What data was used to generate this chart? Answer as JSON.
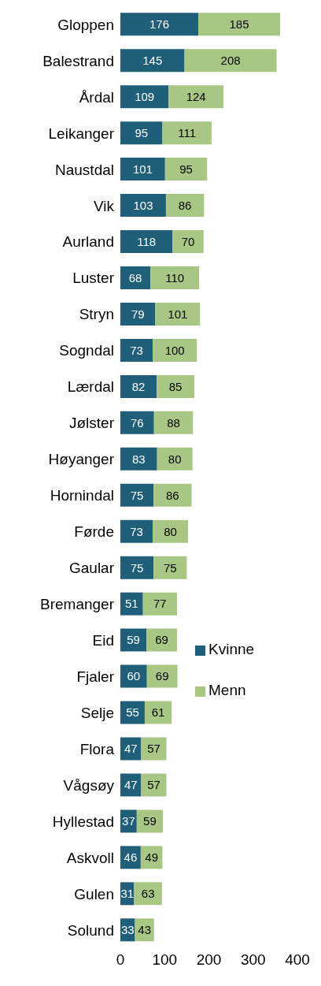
{
  "chart_data": {
    "type": "bar",
    "orientation": "horizontal",
    "stacked": true,
    "data_labels": true,
    "legend": "right",
    "grid": false,
    "categories": [
      "Gloppen",
      "Balestrand",
      "Årdal",
      "Leikanger",
      "Naustdal",
      "Vik",
      "Aurland",
      "Luster",
      "Stryn",
      "Sogndal",
      "Lærdal",
      "Jølster",
      "Høyanger",
      "Hornindal",
      "Førde",
      "Gaular",
      "Bremanger",
      "Eid",
      "Fjaler",
      "Selje",
      "Flora",
      "Vågsøy",
      "Hyllestad",
      "Askvoll",
      "Gulen",
      "Solund"
    ],
    "series": [
      {
        "name": "Kvinne",
        "color": "#1f5f7a",
        "values": [
          176,
          145,
          109,
          95,
          101,
          103,
          118,
          68,
          79,
          73,
          82,
          76,
          83,
          75,
          73,
          75,
          51,
          59,
          60,
          55,
          47,
          47,
          37,
          46,
          31,
          33
        ]
      },
      {
        "name": "Menn",
        "color": "#a9c784",
        "values": [
          185,
          208,
          124,
          111,
          95,
          86,
          70,
          110,
          101,
          100,
          85,
          88,
          80,
          86,
          80,
          75,
          77,
          69,
          69,
          61,
          57,
          57,
          59,
          49,
          63,
          43
        ]
      }
    ],
    "xlim": [
      0,
      400
    ],
    "xticks": [
      0,
      100,
      200,
      300,
      400
    ]
  }
}
